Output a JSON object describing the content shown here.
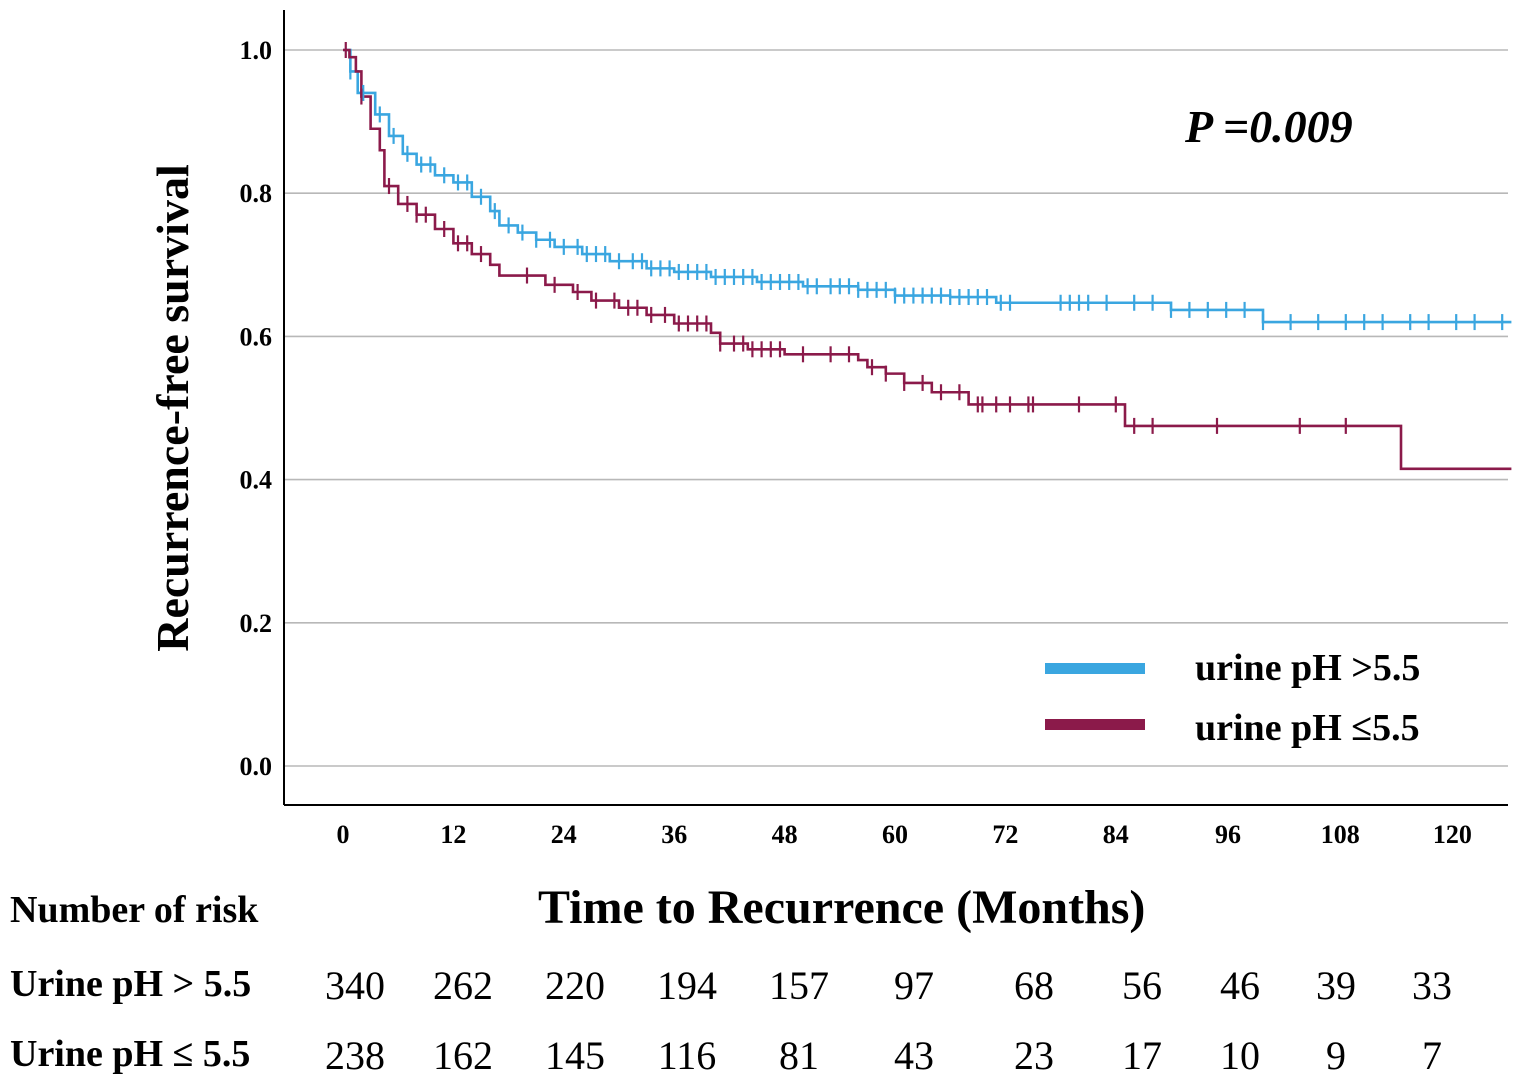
{
  "chart_data": {
    "type": "line",
    "subtype": "kaplan-meier",
    "title": "",
    "xlabel": "Time to Recurrence (Months)",
    "ylabel": "Recurrence-free survival",
    "xlim": [
      -5,
      128
    ],
    "ylim": [
      0.0,
      1.05
    ],
    "xticks": [
      0,
      12,
      24,
      36,
      48,
      60,
      72,
      84,
      96,
      108,
      120
    ],
    "yticks": [
      0.0,
      0.2,
      0.4,
      0.6,
      0.8,
      1.0
    ],
    "ytick_labels": [
      "0.0",
      "0.2",
      "0.4",
      "0.6",
      "0.8",
      "1.0"
    ],
    "grid": "horizontal",
    "annotation": "P =0.009",
    "legend_position": "bottom-right",
    "series": [
      {
        "name": "urine pH >5.5",
        "color": "#3aa6e0",
        "steps": [
          [
            0,
            1.0
          ],
          [
            0.8,
            0.97
          ],
          [
            1.6,
            0.94
          ],
          [
            3.5,
            0.91
          ],
          [
            5,
            0.88
          ],
          [
            6.5,
            0.855
          ],
          [
            8,
            0.84
          ],
          [
            10,
            0.825
          ],
          [
            12,
            0.815
          ],
          [
            14,
            0.795
          ],
          [
            16,
            0.775
          ],
          [
            17,
            0.755
          ],
          [
            19,
            0.745
          ],
          [
            21,
            0.735
          ],
          [
            23,
            0.725
          ],
          [
            26,
            0.715
          ],
          [
            29,
            0.705
          ],
          [
            33,
            0.695
          ],
          [
            36,
            0.69
          ],
          [
            40,
            0.683
          ],
          [
            45,
            0.676
          ],
          [
            50,
            0.67
          ],
          [
            56,
            0.665
          ],
          [
            60,
            0.657
          ],
          [
            66,
            0.655
          ],
          [
            71,
            0.647
          ],
          [
            90,
            0.637
          ],
          [
            100,
            0.62
          ],
          [
            127,
            0.62
          ]
        ],
        "censor_times": [
          0.8,
          2.2,
          4,
          5.5,
          7,
          8.5,
          9.5,
          11,
          12.5,
          13.5,
          15,
          16.5,
          18,
          19.5,
          21,
          22.5,
          24,
          25.5,
          26.5,
          27.5,
          28.5,
          30,
          31.5,
          32.5,
          33.5,
          34.5,
          35.5,
          36.5,
          37.5,
          38.5,
          39.5,
          40.5,
          41.5,
          42.5,
          43.5,
          44.5,
          45.5,
          46.5,
          47.5,
          48.5,
          49.5,
          50.5,
          51.5,
          53,
          54,
          55,
          56,
          57,
          58,
          59,
          60,
          61,
          62,
          63,
          64,
          65,
          66,
          67,
          68,
          69,
          70,
          71.5,
          72.5,
          78,
          79,
          80,
          81,
          83,
          86,
          88,
          90,
          92,
          94,
          96,
          98,
          100,
          103,
          106,
          109,
          111,
          113,
          116,
          118,
          121,
          123,
          126
        ]
      },
      {
        "name": "urine pH ≤5.5",
        "color": "#8b1a4a",
        "steps": [
          [
            0,
            1.0
          ],
          [
            0.7,
            0.99
          ],
          [
            1.4,
            0.97
          ],
          [
            2,
            0.935
          ],
          [
            3,
            0.89
          ],
          [
            4,
            0.86
          ],
          [
            4.5,
            0.81
          ],
          [
            6,
            0.785
          ],
          [
            8,
            0.77
          ],
          [
            10,
            0.75
          ],
          [
            12,
            0.73
          ],
          [
            14,
            0.715
          ],
          [
            16,
            0.7
          ],
          [
            17,
            0.685
          ],
          [
            22,
            0.672
          ],
          [
            25,
            0.662
          ],
          [
            27,
            0.65
          ],
          [
            30,
            0.64
          ],
          [
            33,
            0.63
          ],
          [
            36,
            0.618
          ],
          [
            40,
            0.605
          ],
          [
            41,
            0.59
          ],
          [
            44,
            0.582
          ],
          [
            48,
            0.575
          ],
          [
            56,
            0.567
          ],
          [
            57,
            0.557
          ],
          [
            59,
            0.548
          ],
          [
            61,
            0.535
          ],
          [
            64,
            0.522
          ],
          [
            68,
            0.505
          ],
          [
            78,
            0.505
          ],
          [
            85,
            0.475
          ],
          [
            115,
            0.415
          ],
          [
            127,
            0.415
          ]
        ],
        "censor_times": [
          0.3,
          2,
          5,
          7,
          8,
          9,
          11,
          12.5,
          13.5,
          15,
          20,
          23,
          25.5,
          27.5,
          29.5,
          31,
          32,
          33.5,
          35,
          36.5,
          37.5,
          38.5,
          39.5,
          41,
          42.5,
          43.5,
          44.5,
          45.5,
          46.5,
          47.5,
          50,
          53,
          55,
          57.5,
          59,
          61,
          63,
          65,
          67,
          69,
          69.5,
          71,
          72.5,
          74.5,
          75,
          80,
          84,
          86,
          88,
          95,
          104,
          109
        ]
      }
    ],
    "risk_table": {
      "title": "Number of risk",
      "rows": [
        {
          "label": "Urine pH > 5.5",
          "values": [
            "340",
            "262",
            "220",
            "194",
            "157",
            "97",
            "68",
            "56",
            "46",
            "39",
            "33"
          ]
        },
        {
          "label": "Urine pH ≤ 5.5",
          "values": [
            "238",
            "162",
            "145",
            "116",
            "81",
            "43",
            "23",
            "17",
            "10",
            "9",
            "7"
          ]
        }
      ]
    }
  }
}
